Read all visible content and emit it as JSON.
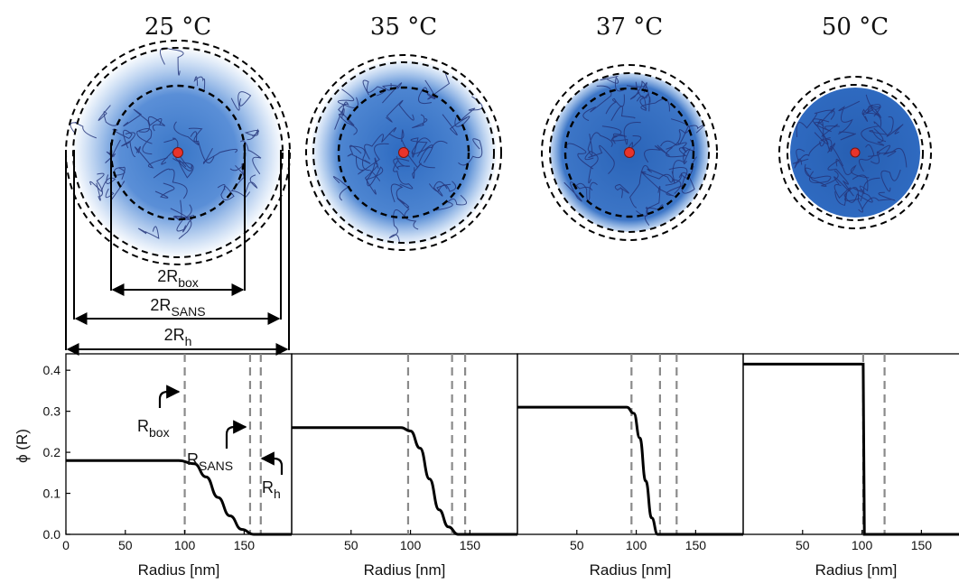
{
  "temperatures": [
    {
      "label": "25 °C"
    },
    {
      "label": "35 °C"
    },
    {
      "label": "37 °C"
    },
    {
      "label": "50 °C"
    }
  ],
  "dimensions": {
    "box": {
      "main": "2R",
      "sub": "box"
    },
    "sans": {
      "main": "2R",
      "sub": "SANS"
    },
    "h": {
      "main": "2R",
      "sub": "h"
    }
  },
  "annotations": {
    "box": {
      "main": "R",
      "sub": "box"
    },
    "sans": {
      "main": "R",
      "sub": "SANS"
    },
    "h": {
      "main": "R",
      "sub": "h"
    }
  },
  "colors": {
    "blob": "#2f6fc4",
    "chain": "#24357a",
    "center": "#e8342b",
    "guide": "#8a8a8a",
    "profile": "#000000"
  },
  "chart_data": [
    {
      "type": "line",
      "title": "",
      "xlabel": "Radius [nm]",
      "ylabel": "ϕ (R)",
      "xlim": [
        0,
        190
      ],
      "ylim": [
        0,
        0.44
      ],
      "xticks": [
        "0",
        "50",
        "100",
        "150"
      ],
      "yticks": [
        "0.0",
        "0.1",
        "0.2",
        "0.3",
        "0.4"
      ],
      "x": [
        0,
        95,
        108,
        118,
        128,
        138,
        148,
        158,
        190
      ],
      "y": [
        0.18,
        0.18,
        0.172,
        0.14,
        0.09,
        0.045,
        0.012,
        0.0,
        0.0
      ],
      "markers": [
        100,
        155,
        164
      ]
    },
    {
      "type": "line",
      "title": "",
      "xlabel": "Radius [nm]",
      "ylabel": "",
      "xlim": [
        0,
        190
      ],
      "ylim": [
        0,
        0.44
      ],
      "xticks": [
        "50",
        "100",
        "150"
      ],
      "yticks": [],
      "x": [
        0,
        92,
        100,
        108,
        116,
        124,
        132,
        140,
        190
      ],
      "y": [
        0.26,
        0.26,
        0.252,
        0.21,
        0.135,
        0.06,
        0.018,
        0.0,
        0.0
      ],
      "markers": [
        98,
        135,
        146
      ]
    },
    {
      "type": "line",
      "title": "",
      "xlabel": "Radius [nm]",
      "ylabel": "",
      "xlim": [
        0,
        190
      ],
      "ylim": [
        0,
        0.44
      ],
      "xticks": [
        "50",
        "100",
        "150"
      ],
      "yticks": [],
      "x": [
        0,
        92,
        98,
        103,
        108,
        113,
        118,
        190
      ],
      "y": [
        0.31,
        0.31,
        0.295,
        0.235,
        0.13,
        0.04,
        0.0,
        0.0
      ],
      "markers": [
        96,
        120,
        134
      ]
    },
    {
      "type": "line",
      "title": "",
      "xlabel": "Radius [nm]",
      "ylabel": "",
      "xlim": [
        0,
        190
      ],
      "ylim": [
        0,
        0.44
      ],
      "xticks": [
        "50",
        "100",
        "150"
      ],
      "yticks": [],
      "x": [
        0,
        101,
        102,
        190
      ],
      "y": [
        0.415,
        0.415,
        0.0,
        0.0
      ],
      "markers": [
        101,
        119
      ]
    }
  ]
}
